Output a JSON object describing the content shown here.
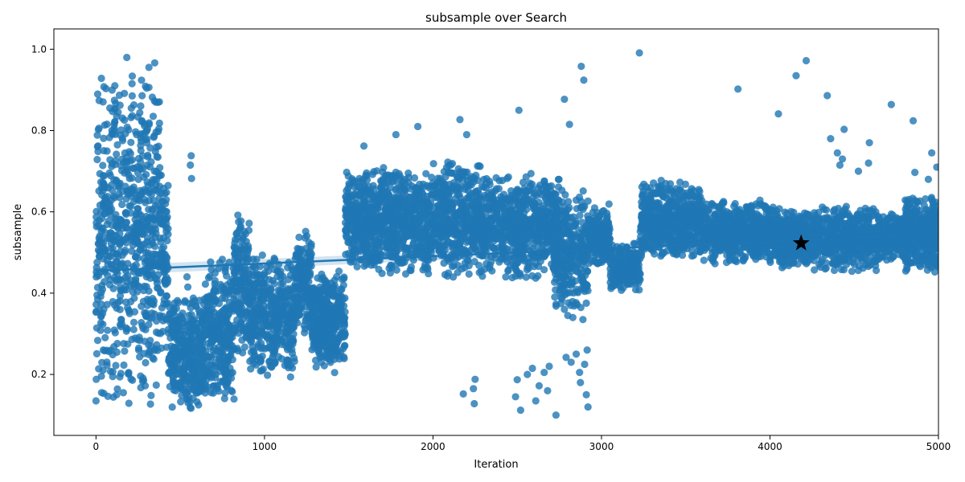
{
  "chart_data": {
    "type": "scatter",
    "title": "subsample over Search",
    "xlabel": "Iteration",
    "ylabel": "subsample",
    "xlim": [
      -250,
      5000
    ],
    "ylim": [
      0.05,
      1.05
    ],
    "xticks": [
      0,
      1000,
      2000,
      3000,
      4000,
      5000
    ],
    "yticks": [
      0.2,
      0.4,
      0.6,
      0.8,
      1.0
    ],
    "grid": false,
    "colors": {
      "points": "#1f77b4",
      "best_marker": "#000000",
      "regression_band": "#1f77b4"
    },
    "regression_line": {
      "x": [
        0,
        5000
      ],
      "y": [
        0.455,
        0.545
      ]
    },
    "best_point": {
      "x": 4185,
      "y": 0.523,
      "marker": "star"
    },
    "clusters": [
      {
        "x": [
          0,
          380
        ],
        "y": [
          0.1,
          1.0
        ],
        "n": 700
      },
      {
        "x": [
          380,
          430
        ],
        "y": [
          0.25,
          0.7
        ],
        "n": 90
      },
      {
        "x": [
          430,
          640
        ],
        "y": [
          0.1,
          0.4
        ],
        "n": 350
      },
      {
        "x": [
          640,
          820
        ],
        "y": [
          0.12,
          0.5
        ],
        "n": 300
      },
      {
        "x": [
          820,
          910
        ],
        "y": [
          0.22,
          0.62
        ],
        "n": 160
      },
      {
        "x": [
          910,
          1180
        ],
        "y": [
          0.18,
          0.5
        ],
        "n": 420
      },
      {
        "x": [
          1180,
          1280
        ],
        "y": [
          0.3,
          0.56
        ],
        "n": 170
      },
      {
        "x": [
          1280,
          1480
        ],
        "y": [
          0.2,
          0.46
        ],
        "n": 380
      },
      {
        "x": [
          1480,
          1600
        ],
        "y": [
          0.46,
          0.7
        ],
        "n": 200
      },
      {
        "x": [
          1600,
          2000
        ],
        "y": [
          0.43,
          0.72
        ],
        "n": 650
      },
      {
        "x": [
          2000,
          2280
        ],
        "y": [
          0.43,
          0.74
        ],
        "n": 450
      },
      {
        "x": [
          2280,
          2750
        ],
        "y": [
          0.43,
          0.7
        ],
        "n": 700
      },
      {
        "x": [
          2720,
          2920
        ],
        "y": [
          0.34,
          0.66
        ],
        "n": 300
      },
      {
        "x": [
          2920,
          3050
        ],
        "y": [
          0.46,
          0.62
        ],
        "n": 200
      },
      {
        "x": [
          3050,
          3230
        ],
        "y": [
          0.4,
          0.53
        ],
        "n": 220
      },
      {
        "x": [
          3230,
          3600
        ],
        "y": [
          0.48,
          0.68
        ],
        "n": 600
      },
      {
        "x": [
          3600,
          4000
        ],
        "y": [
          0.47,
          0.63
        ],
        "n": 650
      },
      {
        "x": [
          4000,
          4210
        ],
        "y": [
          0.46,
          0.62
        ],
        "n": 350
      },
      {
        "x": [
          4210,
          4640
        ],
        "y": [
          0.45,
          0.62
        ],
        "n": 600
      },
      {
        "x": [
          4640,
          4800
        ],
        "y": [
          0.48,
          0.6
        ],
        "n": 260
      },
      {
        "x": [
          4800,
          5000
        ],
        "y": [
          0.45,
          0.64
        ],
        "n": 400
      }
    ],
    "outliers": [
      [
        565,
        0.738
      ],
      [
        560,
        0.715
      ],
      [
        567,
        0.682
      ],
      [
        540,
        0.44
      ],
      [
        545,
        0.415
      ],
      [
        2160,
        0.827
      ],
      [
        2200,
        0.79
      ],
      [
        2510,
        0.85
      ],
      [
        2780,
        0.877
      ],
      [
        2810,
        0.815
      ],
      [
        2880,
        0.958
      ],
      [
        2895,
        0.924
      ],
      [
        3225,
        0.991
      ],
      [
        3810,
        0.902
      ],
      [
        4050,
        0.841
      ],
      [
        4155,
        0.935
      ],
      [
        4215,
        0.972
      ],
      [
        4340,
        0.886
      ],
      [
        4360,
        0.78
      ],
      [
        4440,
        0.803
      ],
      [
        4400,
        0.745
      ],
      [
        4430,
        0.73
      ],
      [
        4415,
        0.715
      ],
      [
        4525,
        0.7
      ],
      [
        4590,
        0.77
      ],
      [
        4585,
        0.72
      ],
      [
        4720,
        0.864
      ],
      [
        4850,
        0.824
      ],
      [
        4860,
        0.697
      ],
      [
        4940,
        0.68
      ],
      [
        4960,
        0.745
      ],
      [
        4990,
        0.71
      ],
      [
        1910,
        0.81
      ],
      [
        1780,
        0.79
      ],
      [
        1590,
        0.762
      ],
      [
        2180,
        0.152
      ],
      [
        2240,
        0.165
      ],
      [
        2250,
        0.188
      ],
      [
        2245,
        0.128
      ],
      [
        2490,
        0.145
      ],
      [
        2500,
        0.187
      ],
      [
        2520,
        0.112
      ],
      [
        2560,
        0.2
      ],
      [
        2590,
        0.215
      ],
      [
        2610,
        0.135
      ],
      [
        2630,
        0.172
      ],
      [
        2660,
        0.205
      ],
      [
        2680,
        0.16
      ],
      [
        2690,
        0.22
      ],
      [
        2730,
        0.1
      ],
      [
        2790,
        0.242
      ],
      [
        2820,
        0.23
      ],
      [
        2850,
        0.25
      ],
      [
        2870,
        0.205
      ],
      [
        2875,
        0.18
      ],
      [
        2900,
        0.225
      ],
      [
        2910,
        0.15
      ],
      [
        2915,
        0.26
      ],
      [
        2920,
        0.12
      ],
      [
        2890,
        0.335
      ],
      [
        2780,
        0.36
      ],
      [
        2800,
        0.345
      ],
      [
        2830,
        0.34
      ]
    ]
  }
}
